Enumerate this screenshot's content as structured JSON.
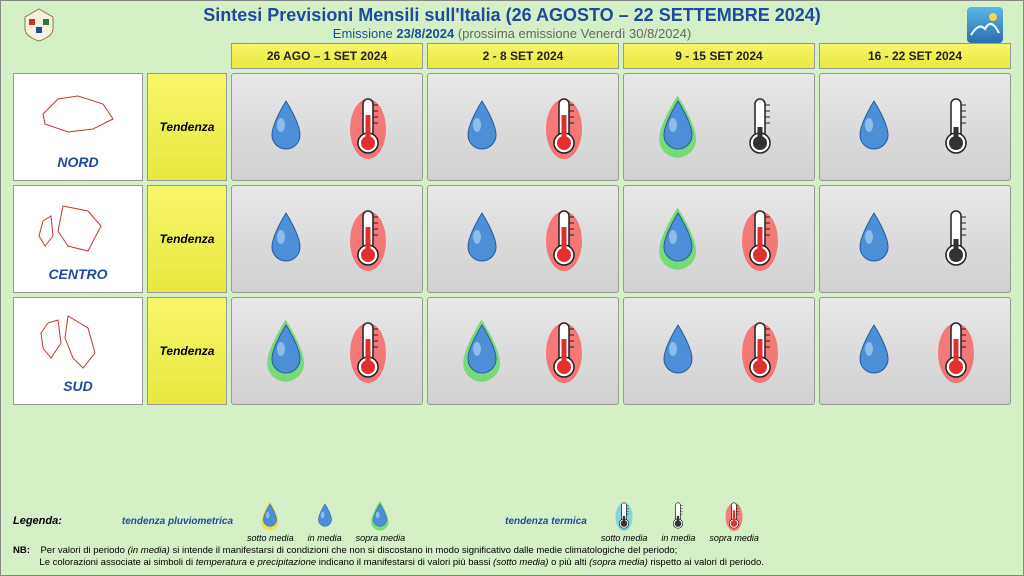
{
  "header": {
    "title": "Sintesi Previsioni Mensili sull'Italia (26 AGOSTO – 22 SETTEMBRE 2024)",
    "emission_prefix": "Emissione ",
    "emission_date": "23/8/2024",
    "next_emission": " (prossima emissione Venerdì 30/8/2024)"
  },
  "columns": [
    "26 AGO – 1 SET 2024",
    "2 - 8 SET 2024",
    "9 - 15 SET 2024",
    "16 - 22 SET 2024"
  ],
  "regions": [
    {
      "name": "NORD",
      "tendenza": "Tendenza"
    },
    {
      "name": "CENTRO",
      "tendenza": "Tendenza"
    },
    {
      "name": "SUD",
      "tendenza": "Tendenza"
    }
  ],
  "forecast": [
    [
      {
        "precip_glow": "none",
        "temp_glow": "red"
      },
      {
        "precip_glow": "none",
        "temp_glow": "red"
      },
      {
        "precip_glow": "green",
        "temp_glow": "none"
      },
      {
        "precip_glow": "none",
        "temp_glow": "none"
      }
    ],
    [
      {
        "precip_glow": "none",
        "temp_glow": "red"
      },
      {
        "precip_glow": "none",
        "temp_glow": "red"
      },
      {
        "precip_glow": "green",
        "temp_glow": "red"
      },
      {
        "precip_glow": "none",
        "temp_glow": "none"
      }
    ],
    [
      {
        "precip_glow": "green",
        "temp_glow": "red"
      },
      {
        "precip_glow": "green",
        "temp_glow": "red"
      },
      {
        "precip_glow": "none",
        "temp_glow": "red"
      },
      {
        "precip_glow": "none",
        "temp_glow": "red"
      }
    ]
  ],
  "legend": {
    "title": "Legenda:",
    "precip_label": "tendenza pluviometrica",
    "temp_label": "tendenza termica",
    "precip_items": [
      {
        "glow": "yellow",
        "label": "sotto media"
      },
      {
        "glow": "none",
        "label": "in media"
      },
      {
        "glow": "green",
        "label": "sopra media"
      }
    ],
    "temp_items": [
      {
        "glow": "blue",
        "label": "sotto media"
      },
      {
        "glow": "none",
        "label": "in media"
      },
      {
        "glow": "red",
        "label": "sopra media"
      }
    ],
    "nb_label": "NB:",
    "nb_line1": "Per valori di periodo (in media) si intende il manifestarsi di condizioni che non si discostano in modo significativo dalle medie climatologiche del periodo;",
    "nb_line2": "Le colorazioni associate ai simboli di temperatura e precipitazione indicano il manifestarsi di valori più bassi (sotto media) o più alti (sopra media) rispetto ai valori di periodo."
  },
  "glow_colors": {
    "none": "transparent",
    "green": "#5fd95f",
    "red": "#ff4d4d",
    "yellow": "#f5d742",
    "blue": "#62c6e6"
  },
  "colors": {
    "background": "#d5f0c6",
    "header_text": "#1e4b9e",
    "yellow_grad_top": "#f7f76a",
    "yellow_grad_bot": "#e8e840",
    "cell_grad_top": "#e8e8e8",
    "cell_grad_bot": "#d0d0d0",
    "drop_fill": "#4d8fd6",
    "drop_highlight": "#a8d0f5",
    "thermo_stroke": "#222"
  }
}
